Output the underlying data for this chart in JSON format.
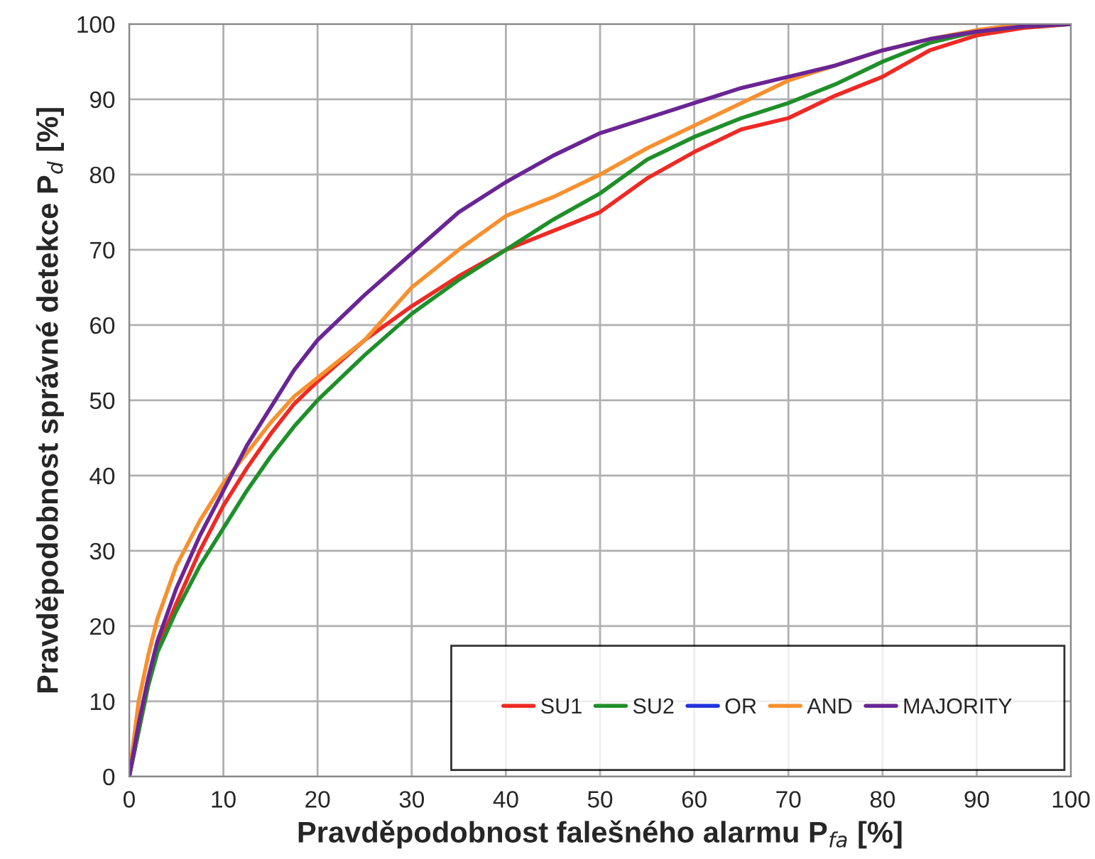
{
  "chart_data": {
    "type": "line",
    "xlabel": "Pravděpodobnost falešného alarmu P$_{fa}$ [%]",
    "ylabel": "Pravděpodobnost správné detekce P$_{d}$ [%]",
    "x": [
      0,
      1,
      2,
      3,
      5,
      7.5,
      10,
      12.5,
      15,
      17.5,
      20,
      25,
      30,
      35,
      40,
      45,
      50,
      55,
      60,
      65,
      70,
      75,
      80,
      85,
      90,
      95,
      100
    ],
    "series": [
      {
        "name": "SU1",
        "color": "#ee2a24",
        "values": [
          0,
          6,
          12,
          17,
          23,
          30,
          36,
          41,
          45.5,
          49.5,
          52.5,
          58,
          62.5,
          66.5,
          70,
          72.5,
          75,
          79.5,
          83,
          86,
          87.5,
          90.5,
          93,
          96.5,
          98.5,
          99.5,
          100
        ]
      },
      {
        "name": "SU2",
        "color": "#1f8f2a",
        "values": [
          0,
          6,
          12,
          16.5,
          22,
          28,
          33,
          38,
          42.5,
          46.5,
          50,
          56,
          61.5,
          66,
          70,
          74,
          77.5,
          82,
          85,
          87.5,
          89.5,
          92,
          95,
          97.5,
          99,
          99.7,
          100
        ]
      },
      {
        "name": "OR",
        "color": "#2233dd",
        "values": [
          null,
          null,
          null,
          null,
          null,
          null,
          null,
          null,
          null,
          null,
          null,
          null,
          null,
          null,
          null,
          null,
          null,
          null,
          null,
          null,
          null,
          null,
          null,
          null,
          null,
          null,
          null
        ]
      },
      {
        "name": "AND",
        "color": "#f7902f",
        "values": [
          0,
          10,
          16,
          21,
          28,
          34,
          39,
          43,
          47,
          50.5,
          53,
          58,
          65,
          70,
          74.5,
          77,
          80,
          83.5,
          86.5,
          89.5,
          92.5,
          94.5,
          96.5,
          98,
          99.2,
          100,
          100
        ]
      },
      {
        "name": "MAJORITY",
        "color": "#6a2595",
        "values": [
          0,
          7,
          13,
          18,
          25,
          32,
          38,
          44,
          49,
          54,
          58,
          64,
          69.5,
          75,
          79,
          82.5,
          85.5,
          87.5,
          89.5,
          91.5,
          93,
          94.5,
          96.5,
          98,
          99,
          99.7,
          100
        ]
      }
    ],
    "xlim": [
      0,
      100
    ],
    "ylim": [
      0,
      100
    ],
    "xticks": [
      0,
      10,
      20,
      30,
      40,
      50,
      60,
      70,
      80,
      90,
      100
    ],
    "yticks": [
      0,
      10,
      20,
      30,
      40,
      50,
      60,
      70,
      80,
      90,
      100
    ],
    "grid": true,
    "legend": "bottom right",
    "line_style": "solid",
    "marker": "none"
  }
}
